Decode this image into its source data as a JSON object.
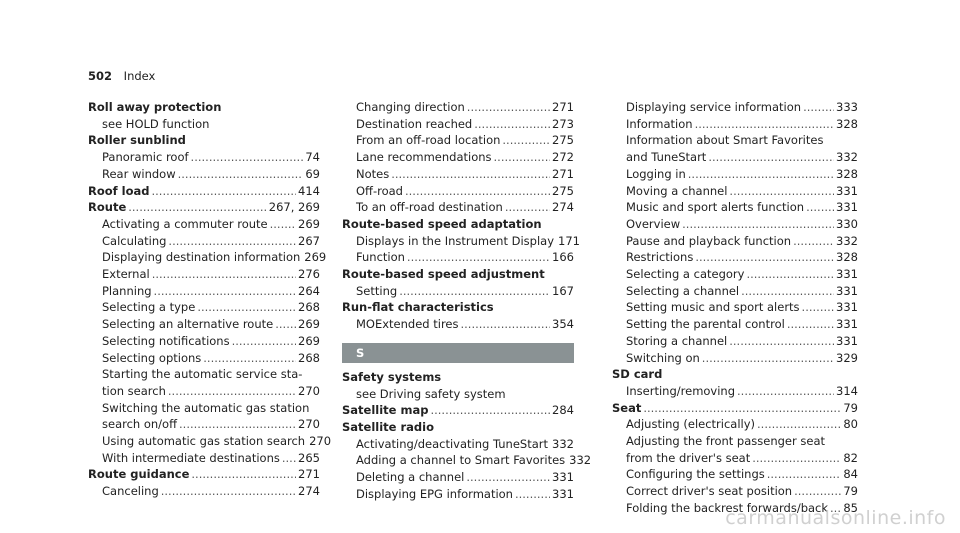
{
  "header": {
    "page_number": "502",
    "title": "Index"
  },
  "column1": [
    {
      "kind": "main",
      "label": "Roll away protection",
      "page": ""
    },
    {
      "kind": "sub",
      "label": "see HOLD function",
      "page": ""
    },
    {
      "kind": "main",
      "label": "Roller sunblind",
      "page": ""
    },
    {
      "kind": "sub",
      "label": "Panoramic roof",
      "page": "74"
    },
    {
      "kind": "sub",
      "label": "Rear window",
      "page": "69"
    },
    {
      "kind": "main",
      "label": "Roof load",
      "page": "414"
    },
    {
      "kind": "main",
      "label": "Route",
      "page": "267, 269"
    },
    {
      "kind": "sub",
      "label": "Activating a commuter route",
      "page": "269"
    },
    {
      "kind": "sub",
      "label": "Calculating",
      "page": "267"
    },
    {
      "kind": "sub",
      "label": "Displaying destination information",
      "page": "269"
    },
    {
      "kind": "sub",
      "label": "External",
      "page": "276"
    },
    {
      "kind": "sub",
      "label": "Planning",
      "page": "264"
    },
    {
      "kind": "sub",
      "label": "Selecting a type",
      "page": "268"
    },
    {
      "kind": "sub",
      "label": "Selecting an alternative route",
      "page": "269"
    },
    {
      "kind": "sub",
      "label": "Selecting notifications",
      "page": "269"
    },
    {
      "kind": "sub",
      "label": "Selecting options",
      "page": "268"
    },
    {
      "kind": "sub",
      "label": "Starting the automatic service sta-",
      "page": ""
    },
    {
      "kind": "sub",
      "label": "tion search",
      "page": "270"
    },
    {
      "kind": "sub",
      "label": "Switching the automatic gas station",
      "page": ""
    },
    {
      "kind": "sub",
      "label": "search on/off",
      "page": "270"
    },
    {
      "kind": "sub",
      "label": "Using automatic gas station search",
      "page": "270"
    },
    {
      "kind": "sub",
      "label": "With intermediate destinations",
      "page": "265"
    },
    {
      "kind": "main",
      "label": "Route guidance",
      "page": "271"
    },
    {
      "kind": "sub",
      "label": "Canceling",
      "page": "274"
    }
  ],
  "column2": [
    {
      "kind": "sub",
      "label": "Changing direction",
      "page": "271"
    },
    {
      "kind": "sub",
      "label": "Destination reached",
      "page": "273"
    },
    {
      "kind": "sub",
      "label": "From an off-road location",
      "page": "275"
    },
    {
      "kind": "sub",
      "label": "Lane recommendations",
      "page": "272"
    },
    {
      "kind": "sub",
      "label": "Notes",
      "page": "271"
    },
    {
      "kind": "sub",
      "label": "Off-road",
      "page": "275"
    },
    {
      "kind": "sub",
      "label": "To an off-road destination",
      "page": "274"
    },
    {
      "kind": "main",
      "label": "Route-based speed adaptation",
      "page": ""
    },
    {
      "kind": "sub",
      "label": "Displays in the Instrument Display",
      "page": "171"
    },
    {
      "kind": "sub",
      "label": "Function",
      "page": "166"
    },
    {
      "kind": "main",
      "label": "Route-based speed adjustment",
      "page": ""
    },
    {
      "kind": "sub",
      "label": "Setting",
      "page": "167"
    },
    {
      "kind": "main",
      "label": "Run-flat characteristics",
      "page": ""
    },
    {
      "kind": "sub",
      "label": "MOExtended tires",
      "page": "354"
    },
    {
      "kind": "letter",
      "label": "S",
      "page": ""
    },
    {
      "kind": "main",
      "label": "Safety systems",
      "page": ""
    },
    {
      "kind": "sub",
      "label": "see Driving safety system",
      "page": ""
    },
    {
      "kind": "main",
      "label": "Satellite map",
      "page": "284"
    },
    {
      "kind": "main",
      "label": "Satellite radio",
      "page": ""
    },
    {
      "kind": "sub",
      "label": "Activating/deactivating TuneStart",
      "page": "332"
    },
    {
      "kind": "sub",
      "label": "Adding a channel to Smart Favorites",
      "page": "332"
    },
    {
      "kind": "sub",
      "label": "Deleting a channel",
      "page": "331"
    },
    {
      "kind": "sub",
      "label": "Displaying EPG information",
      "page": "331"
    }
  ],
  "column3": [
    {
      "kind": "sub",
      "label": "Displaying service information",
      "page": "333"
    },
    {
      "kind": "sub",
      "label": "Information",
      "page": "328"
    },
    {
      "kind": "sub",
      "label": "Information about Smart Favorites",
      "page": ""
    },
    {
      "kind": "sub",
      "label": "and TuneStart",
      "page": "332"
    },
    {
      "kind": "sub",
      "label": "Logging in",
      "page": "328"
    },
    {
      "kind": "sub",
      "label": "Moving a channel",
      "page": "331"
    },
    {
      "kind": "sub",
      "label": "Music and sport alerts function",
      "page": "331"
    },
    {
      "kind": "sub",
      "label": "Overview",
      "page": "330"
    },
    {
      "kind": "sub",
      "label": "Pause and playback function",
      "page": "332"
    },
    {
      "kind": "sub",
      "label": "Restrictions",
      "page": "328"
    },
    {
      "kind": "sub",
      "label": "Selecting a category",
      "page": "331"
    },
    {
      "kind": "sub",
      "label": "Selecting a channel",
      "page": "331"
    },
    {
      "kind": "sub",
      "label": "Setting music and sport alerts",
      "page": "331"
    },
    {
      "kind": "sub",
      "label": "Setting the parental control",
      "page": "331"
    },
    {
      "kind": "sub",
      "label": "Storing a channel",
      "page": "331"
    },
    {
      "kind": "sub",
      "label": "Switching on",
      "page": "329"
    },
    {
      "kind": "main",
      "label": "SD card",
      "page": ""
    },
    {
      "kind": "sub",
      "label": "Inserting/removing",
      "page": "314"
    },
    {
      "kind": "main",
      "label": "Seat",
      "page": "79"
    },
    {
      "kind": "sub",
      "label": "Adjusting (electrically)",
      "page": "80"
    },
    {
      "kind": "sub",
      "label": "Adjusting the front passenger seat",
      "page": ""
    },
    {
      "kind": "sub",
      "label": "from the driver's seat",
      "page": "82"
    },
    {
      "kind": "sub",
      "label": "Configuring the settings",
      "page": "84"
    },
    {
      "kind": "sub",
      "label": "Correct driver's seat position",
      "page": "79"
    },
    {
      "kind": "sub",
      "label": "Folding the backrest forwards/back",
      "page": "85"
    }
  ],
  "watermark": "carmanualsonline.info"
}
